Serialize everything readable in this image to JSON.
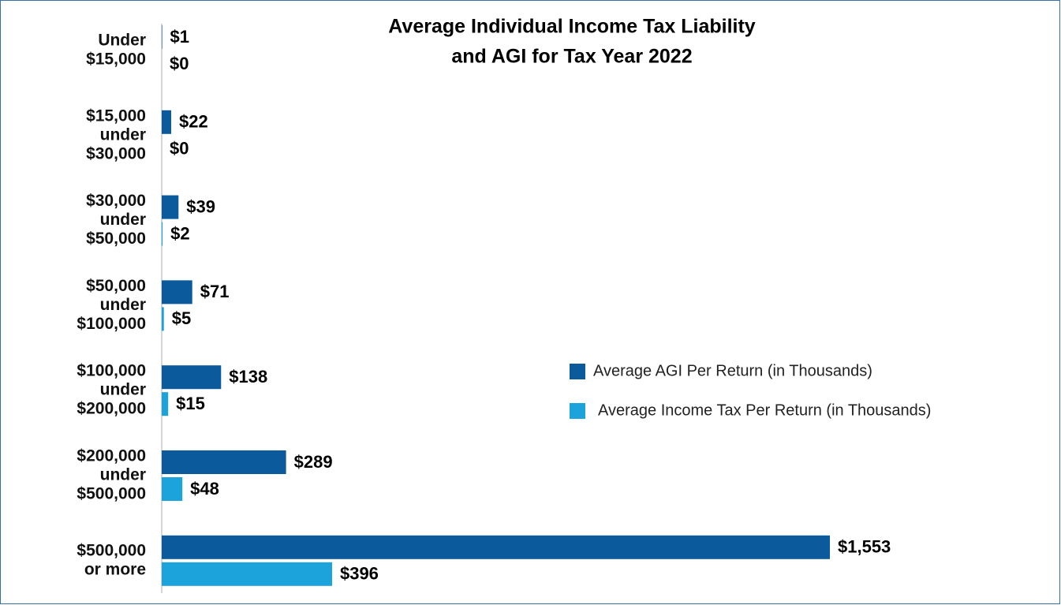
{
  "chart_data": {
    "type": "bar",
    "orientation": "horizontal",
    "title": [
      "Average Individual Income Tax Liability",
      "and AGI for Tax Year 2022"
    ],
    "categories": [
      [
        "Under",
        "$15,000"
      ],
      [
        "$15,000",
        "under",
        "$30,000"
      ],
      [
        "$30,000",
        "under",
        "$50,000"
      ],
      [
        "$50,000",
        "under",
        "$100,000"
      ],
      [
        "$100,000",
        "under",
        "$200,000"
      ],
      [
        "$200,000",
        "under",
        "$500,000"
      ],
      [
        "$500,000",
        "or more"
      ]
    ],
    "series": [
      {
        "name": "Average AGI Per Return (in Thousands)",
        "color": "#0b5a9c",
        "values": [
          1,
          22,
          39,
          71,
          138,
          289,
          1553
        ],
        "value_labels": [
          "$1",
          "$22",
          "$39",
          "$71",
          "$138",
          "$289",
          "$1,553"
        ]
      },
      {
        "name": "Average Income Tax Per Return (in Thousands)",
        "color": "#1ca3dc",
        "values": [
          0,
          0,
          2,
          5,
          15,
          48,
          396
        ],
        "value_labels": [
          "$0",
          "$0",
          "$2",
          "$5",
          "$15",
          "$48",
          "$396"
        ]
      }
    ],
    "legend": "right"
  }
}
